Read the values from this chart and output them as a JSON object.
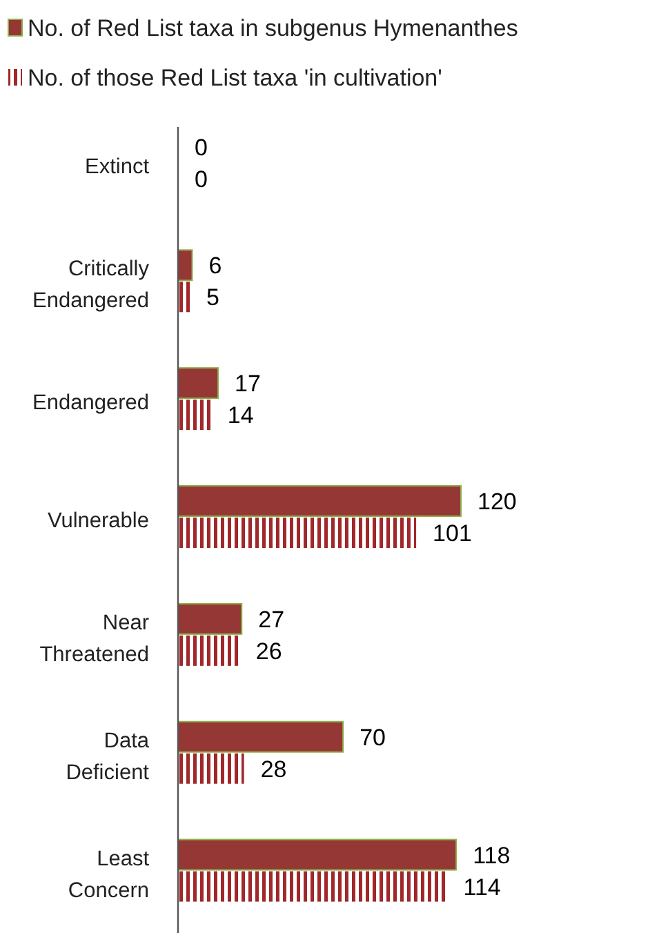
{
  "chart_data": {
    "type": "bar",
    "orientation": "horizontal",
    "data_labels": true,
    "legend": "top",
    "categories": [
      "Extinct",
      "Critically Endangered",
      "Endangered",
      "Vulnerable",
      "Near Threatened",
      "Data Deficient",
      "Least Concern"
    ],
    "series": [
      {
        "name": "No. of Red List taxa in subgenus Hymenanthes",
        "color": "#953735",
        "values": [
          0,
          6,
          17,
          120,
          27,
          70,
          118
        ]
      },
      {
        "name": "No. of those Red List taxa 'in cultivation'",
        "color": "#a0282a",
        "values": [
          0,
          5,
          14,
          101,
          26,
          28,
          114
        ]
      }
    ]
  }
}
